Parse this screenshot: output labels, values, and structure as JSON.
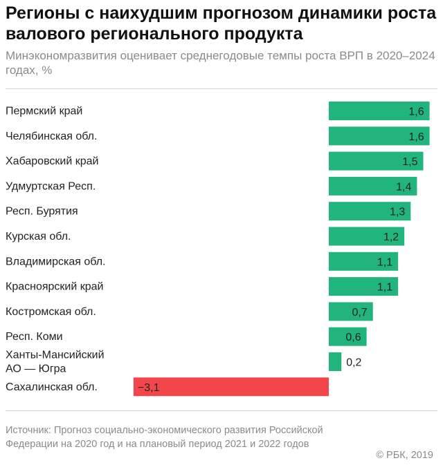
{
  "header": {
    "title": "Регионы с наихудшим прогнозом динамики роста валового регионального продукта",
    "subtitle": "Минэкономразвития оценивает среднегодовые темпы роста ВРП в 2020–2024 годах, %"
  },
  "footer": {
    "source": "Источник: Прогноз социально-экономического развития Российской Федерации на 2020 год и на плановый период 2021 и 2022 годов",
    "copyright": "© РБК, 2019"
  },
  "colors": {
    "positive": "#21b47d",
    "negative": "#f2464b"
  },
  "chart_data": {
    "type": "bar",
    "orientation": "horizontal",
    "title": "Регионы с наихудшим прогнозом динамики роста валового регионального продукта",
    "subtitle": "Минэкономразвития оценивает среднегодовые темпы роста ВРП в 2020–2024 годах, %",
    "categories": [
      "Пермский край",
      "Челябинская обл.",
      "Хабаровский край",
      "Удмуртская Респ.",
      "Респ. Бурятия",
      "Курская обл.",
      "Владимирская обл.",
      "Красноярский край",
      "Костромская обл.",
      "Респ. Коми",
      "Ханты-Мансийский АО — Югра",
      "Сахалинская обл."
    ],
    "labels": [
      [
        "Пермский край"
      ],
      [
        "Челябинская обл."
      ],
      [
        "Хабаровский край"
      ],
      [
        "Удмуртская Респ."
      ],
      [
        "Респ. Бурятия"
      ],
      [
        "Курская обл."
      ],
      [
        "Владимирская обл."
      ],
      [
        "Красноярский край"
      ],
      [
        "Костромская обл."
      ],
      [
        "Респ. Коми"
      ],
      [
        "Ханты-Мансийский",
        "АО — Югра"
      ],
      [
        "Сахалинская обл."
      ]
    ],
    "values": [
      1.6,
      1.6,
      1.5,
      1.4,
      1.3,
      1.2,
      1.1,
      1.1,
      0.7,
      0.6,
      0.2,
      -3.1
    ],
    "value_labels": [
      "1,6",
      "1,6",
      "1,5",
      "1,4",
      "1,3",
      "1,2",
      "1,1",
      "1,1",
      "0,7",
      "0,6",
      "0,2",
      "−3,1"
    ],
    "grid": false,
    "legend": "none"
  }
}
